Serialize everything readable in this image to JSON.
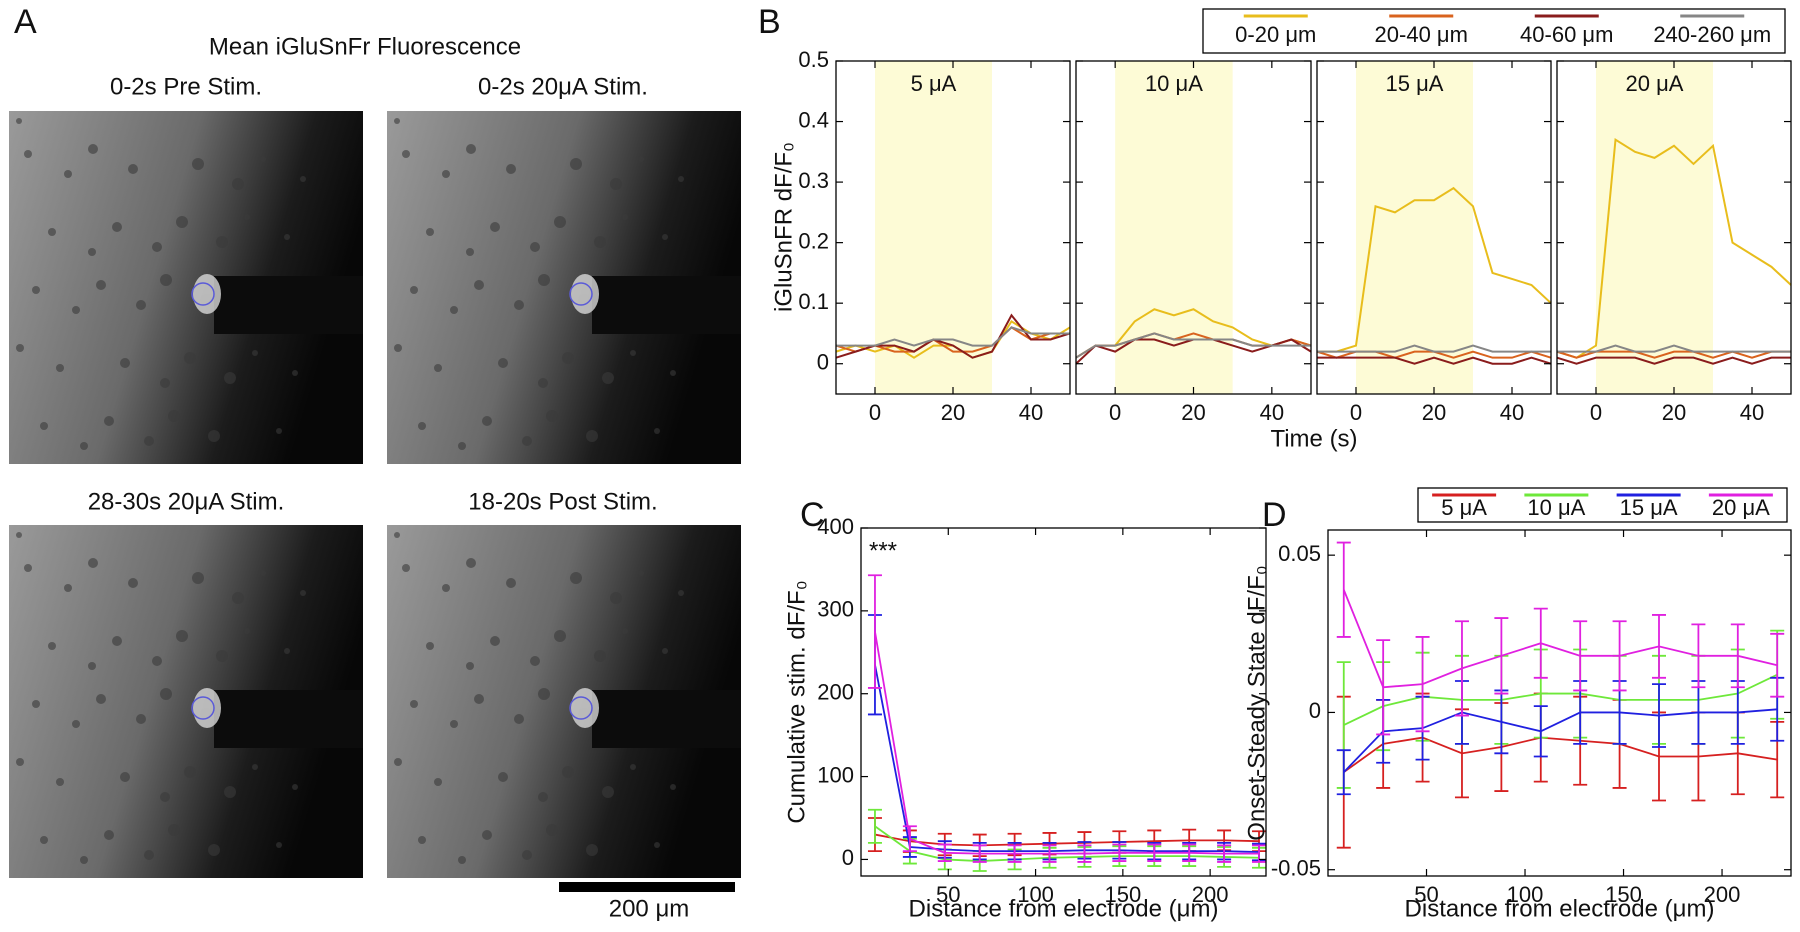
{
  "panel_a": {
    "label": "A",
    "title": "Mean iGluSnFr Fluorescence",
    "images": [
      "0-2s Pre Stim.",
      "0-2s 20μA Stim.",
      "28-30s 20μA Stim.",
      "18-20s Post Stim."
    ],
    "scale_bar": "200 μm"
  },
  "chart_data": [
    {
      "type": "line",
      "panel_label": "B",
      "ylabel": "iGluSnFR dF/F₀",
      "xlabel": "Time (s)",
      "shade": [
        0,
        30
      ],
      "shade_color": "#fdfbd6",
      "xlim": [
        -10,
        50
      ],
      "xticks": [
        0,
        20,
        40
      ],
      "ylim": [
        -0.05,
        0.5
      ],
      "yticks": [
        0,
        0.1,
        0.2,
        0.3,
        0.4,
        0.5
      ],
      "x": [
        -10,
        -5,
        0,
        5,
        10,
        15,
        20,
        25,
        30,
        35,
        40,
        45,
        50
      ],
      "series": [
        {
          "name": "0-20 μm",
          "color": "#e8bd1c"
        },
        {
          "name": "20-40 μm",
          "color": "#d9631e"
        },
        {
          "name": "40-60 μm",
          "color": "#8a1c1c"
        },
        {
          "name": "240-260 μm",
          "color": "#868686"
        }
      ],
      "panels": [
        {
          "label": "5 μA",
          "values": [
            [
              0.02,
              0.03,
              0.02,
              0.03,
              0.01,
              0.03,
              0.03,
              0.01,
              0.02,
              0.07,
              0.05,
              0.04,
              0.06
            ],
            [
              0.03,
              0.02,
              0.03,
              0.02,
              0.02,
              0.04,
              0.02,
              0.02,
              0.03,
              0.06,
              0.04,
              0.05,
              0.05
            ],
            [
              0.01,
              0.02,
              0.03,
              0.03,
              0.02,
              0.04,
              0.03,
              0.01,
              0.02,
              0.08,
              0.04,
              0.04,
              0.05
            ],
            [
              0.03,
              0.03,
              0.03,
              0.04,
              0.03,
              0.04,
              0.04,
              0.03,
              0.03,
              0.06,
              0.05,
              0.05,
              0.05
            ]
          ]
        },
        {
          "label": "10 μA",
          "values": [
            [
              0.01,
              0.03,
              0.03,
              0.07,
              0.09,
              0.08,
              0.09,
              0.07,
              0.06,
              0.04,
              0.03,
              0.04,
              0.03
            ],
            [
              0.01,
              0.03,
              0.03,
              0.04,
              0.05,
              0.04,
              0.05,
              0.04,
              0.04,
              0.03,
              0.03,
              0.04,
              0.03
            ],
            [
              0,
              0.03,
              0.02,
              0.04,
              0.04,
              0.03,
              0.04,
              0.04,
              0.03,
              0.02,
              0.03,
              0.04,
              0.02
            ],
            [
              0.01,
              0.03,
              0.03,
              0.04,
              0.05,
              0.04,
              0.04,
              0.04,
              0.04,
              0.03,
              0.03,
              0.03,
              0.03
            ]
          ]
        },
        {
          "label": "15 μA",
          "values": [
            [
              0.02,
              0.02,
              0.03,
              0.26,
              0.25,
              0.27,
              0.27,
              0.29,
              0.26,
              0.15,
              0.14,
              0.13,
              0.1
            ],
            [
              0.02,
              0.01,
              0.02,
              0.02,
              0.01,
              0.02,
              0.02,
              0.01,
              0.02,
              0.01,
              0.01,
              0.02,
              0.01
            ],
            [
              0.01,
              0.01,
              0.01,
              0.01,
              0.01,
              0,
              0.01,
              0,
              0.01,
              0,
              0,
              0.01,
              0
            ],
            [
              0.02,
              0.02,
              0.02,
              0.02,
              0.02,
              0.03,
              0.02,
              0.02,
              0.03,
              0.02,
              0.02,
              0.02,
              0.02
            ]
          ]
        },
        {
          "label": "20 μA",
          "values": [
            [
              0.02,
              0.01,
              0.03,
              0.37,
              0.35,
              0.34,
              0.36,
              0.33,
              0.36,
              0.2,
              0.18,
              0.16,
              0.13
            ],
            [
              0.02,
              0.01,
              0.02,
              0.02,
              0.02,
              0.01,
              0.02,
              0.02,
              0.01,
              0.02,
              0.01,
              0.02,
              0.02
            ],
            [
              0.01,
              0,
              0.01,
              0.01,
              0.01,
              0,
              0.01,
              0.01,
              0,
              0.01,
              0,
              0.01,
              0.01
            ],
            [
              0.02,
              0.02,
              0.02,
              0.03,
              0.02,
              0.02,
              0.03,
              0.02,
              0.02,
              0.02,
              0.02,
              0.02,
              0.02
            ]
          ]
        }
      ]
    },
    {
      "type": "errorbar",
      "panel_label": "C",
      "ylabel": "Cumulative stim. dF/F₀",
      "xlabel": "Distance from electrode (μm)",
      "annotation": "***",
      "xlim": [
        0,
        232
      ],
      "xticks": [
        50,
        100,
        150,
        200
      ],
      "ylim": [
        -20,
        400
      ],
      "yticks": [
        0,
        100,
        200,
        300,
        400
      ],
      "x": [
        8,
        28,
        48,
        68,
        88,
        108,
        128,
        148,
        168,
        188,
        208,
        228
      ],
      "series": [
        {
          "color": "#d62020",
          "values": [
            30,
            22,
            18,
            17,
            18,
            19,
            20,
            21,
            22,
            23,
            23,
            22
          ],
          "errors": [
            20,
            13,
            13,
            13,
            13,
            13,
            13,
            13,
            13,
            13,
            12,
            12
          ]
        },
        {
          "color": "#6ee83a",
          "values": [
            40,
            10,
            0,
            -2,
            0,
            2,
            3,
            4,
            4,
            4,
            3,
            2
          ],
          "errors": [
            20,
            15,
            12,
            12,
            12,
            12,
            12,
            12,
            12,
            12,
            12,
            12
          ]
        },
        {
          "color": "#2020e0",
          "values": [
            235,
            15,
            12,
            10,
            10,
            10,
            11,
            11,
            10,
            10,
            10,
            9
          ],
          "errors": [
            60,
            12,
            10,
            10,
            10,
            10,
            10,
            10,
            10,
            10,
            10,
            10
          ]
        },
        {
          "color": "#e020e0",
          "values": [
            275,
            25,
            8,
            7,
            7,
            7,
            7,
            8,
            8,
            8,
            7,
            7
          ],
          "errors": [
            68,
            15,
            10,
            10,
            10,
            10,
            10,
            10,
            10,
            10,
            10,
            10
          ]
        }
      ]
    },
    {
      "type": "errorbar",
      "panel_label": "D",
      "ylabel": "Onset-Steady State dF/F₀",
      "xlabel": "Distance from electrode (μm)",
      "xlim": [
        0,
        235
      ],
      "xticks": [
        50,
        100,
        150,
        200
      ],
      "ylim": [
        -0.052,
        0.058
      ],
      "yticks": [
        -0.05,
        0,
        0.05
      ],
      "x": [
        8,
        28,
        48,
        68,
        88,
        108,
        128,
        148,
        168,
        188,
        208,
        228
      ],
      "series": [
        {
          "name": "5 μA",
          "color": "#d62020",
          "values": [
            -0.019,
            -0.01,
            -0.008,
            -0.013,
            -0.011,
            -0.008,
            -0.009,
            -0.01,
            -0.014,
            -0.014,
            -0.013,
            -0.015
          ],
          "errors": [
            0.024,
            0.014,
            0.014,
            0.014,
            0.014,
            0.014,
            0.014,
            0.014,
            0.014,
            0.014,
            0.013,
            0.012
          ]
        },
        {
          "name": "10 μA",
          "color": "#6ee83a",
          "values": [
            -0.004,
            0.002,
            0.005,
            0.004,
            0.004,
            0.006,
            0.006,
            0.004,
            0.004,
            0.004,
            0.006,
            0.012
          ],
          "errors": [
            0.02,
            0.014,
            0.014,
            0.014,
            0.014,
            0.014,
            0.014,
            0.014,
            0.014,
            0.014,
            0.014,
            0.014
          ]
        },
        {
          "name": "15 μA",
          "color": "#2020e0",
          "values": [
            -0.019,
            -0.006,
            -0.005,
            0,
            -0.003,
            -0.006,
            0,
            0,
            -0.001,
            0,
            0,
            0.001
          ],
          "errors": [
            0.007,
            0.01,
            0.01,
            0.01,
            0.01,
            0.008,
            0.01,
            0.01,
            0.01,
            0.01,
            0.01,
            0.01
          ]
        },
        {
          "name": "20 μA",
          "color": "#e020e0",
          "values": [
            0.039,
            0.008,
            0.009,
            0.014,
            0.018,
            0.022,
            0.018,
            0.018,
            0.021,
            0.018,
            0.018,
            0.015
          ],
          "errors": [
            0.015,
            0.015,
            0.015,
            0.015,
            0.012,
            0.011,
            0.011,
            0.011,
            0.01,
            0.01,
            0.01,
            0.01
          ]
        }
      ]
    }
  ]
}
